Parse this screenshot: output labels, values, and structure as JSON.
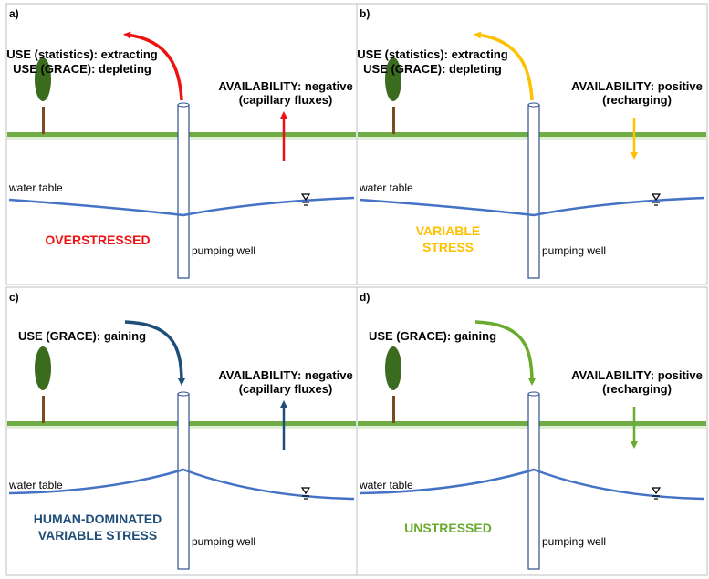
{
  "colors": {
    "ground": "#70ad47",
    "water": "#4472c4",
    "tree_canopy": "#3a6b1f",
    "tree_trunk": "#7b4a1e",
    "well": "#2f4f8f",
    "panel_border": "#bfbfbf",
    "red": "#ee1111",
    "yellow": "#ffc000",
    "navy": "#1f4e79",
    "green": "#6aab2e"
  },
  "panels": [
    {
      "letter": "a)",
      "use_lines": [
        "USE (statistics): extracting",
        "USE (GRACE): depleting"
      ],
      "availability_lines": [
        "AVAILABILITY: negative",
        "(capillary fluxes)"
      ],
      "water_table_label": "water table",
      "well_label": "pumping well",
      "status_lines": [
        "OVERSTRESSED"
      ],
      "status_color": "red",
      "use_arrow_color": "red",
      "availability_arrow_color": "red",
      "use_direction": "out",
      "availability_direction": "up",
      "water_table_shape": "cone-down"
    },
    {
      "letter": "b)",
      "use_lines": [
        "USE (statistics): extracting",
        "USE (GRACE): depleting"
      ],
      "availability_lines": [
        "AVAILABILITY: positive",
        "(recharging)"
      ],
      "water_table_label": "water table",
      "well_label": "pumping well",
      "status_lines": [
        "VARIABLE",
        "STRESS"
      ],
      "status_color": "yellow",
      "use_arrow_color": "yellow",
      "availability_arrow_color": "yellow",
      "use_direction": "out",
      "availability_direction": "down",
      "water_table_shape": "cone-down"
    },
    {
      "letter": "c)",
      "use_lines": [
        "USE (GRACE): gaining"
      ],
      "availability_lines": [
        "AVAILABILITY: negative",
        "(capillary fluxes)"
      ],
      "water_table_label": "water table",
      "well_label": "pumping well",
      "status_lines": [
        "HUMAN-DOMINATED",
        "VARIABLE STRESS"
      ],
      "status_color": "navy",
      "use_arrow_color": "navy",
      "availability_arrow_color": "navy",
      "use_direction": "in",
      "availability_direction": "up",
      "water_table_shape": "mound-up"
    },
    {
      "letter": "d)",
      "use_lines": [
        "USE (GRACE): gaining"
      ],
      "availability_lines": [
        "AVAILABILITY: positive",
        "(recharging)"
      ],
      "water_table_label": "water table",
      "well_label": "pumping well",
      "status_lines": [
        "UNSTRESSED"
      ],
      "status_color": "green",
      "use_arrow_color": "green",
      "availability_arrow_color": "green",
      "use_direction": "in",
      "availability_direction": "down",
      "water_table_shape": "mound-up"
    }
  ]
}
